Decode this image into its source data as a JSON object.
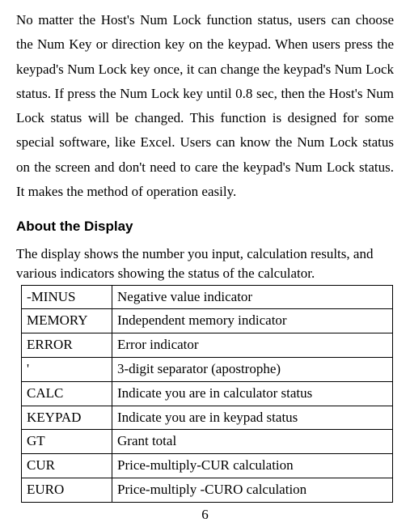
{
  "para1": "No matter the Host's Num Lock function status, users can choose the Num Key or direction key on the keypad. When users press the keypad's Num Lock key once, it can change the keypad's Num Lock status. If press the Num Lock key until 0.8 sec, then the Host's Num Lock status will be changed. This function is designed for some special software, like Excel. Users can know the Num Lock status on the screen and don't need to care the keypad's Num Lock status. It makes the method of operation easily.",
  "heading": "About the Display",
  "intro": "The display shows the number you input, calculation results, and various indicators showing the status of the calculator.",
  "table": {
    "rows": [
      {
        "key": "-MINUS",
        "desc": "Negative value indicator"
      },
      {
        "key": "MEMORY",
        "desc": "Independent memory indicator"
      },
      {
        "key": "ERROR",
        "desc": "Error indicator"
      },
      {
        "key": "'",
        "desc": "3-digit separator (apostrophe)"
      },
      {
        "key": "CALC",
        "desc": "Indicate you are in calculator status"
      },
      {
        "key": "KEYPAD",
        "desc": "Indicate you are in keypad status"
      },
      {
        "key": "GT",
        "desc": "Grant total"
      },
      {
        "key": "CUR",
        "desc": "Price-multiply-CUR calculation"
      },
      {
        "key": "EURO",
        "desc": "Price-multiply -CURO calculation"
      }
    ]
  },
  "page_number": "6"
}
